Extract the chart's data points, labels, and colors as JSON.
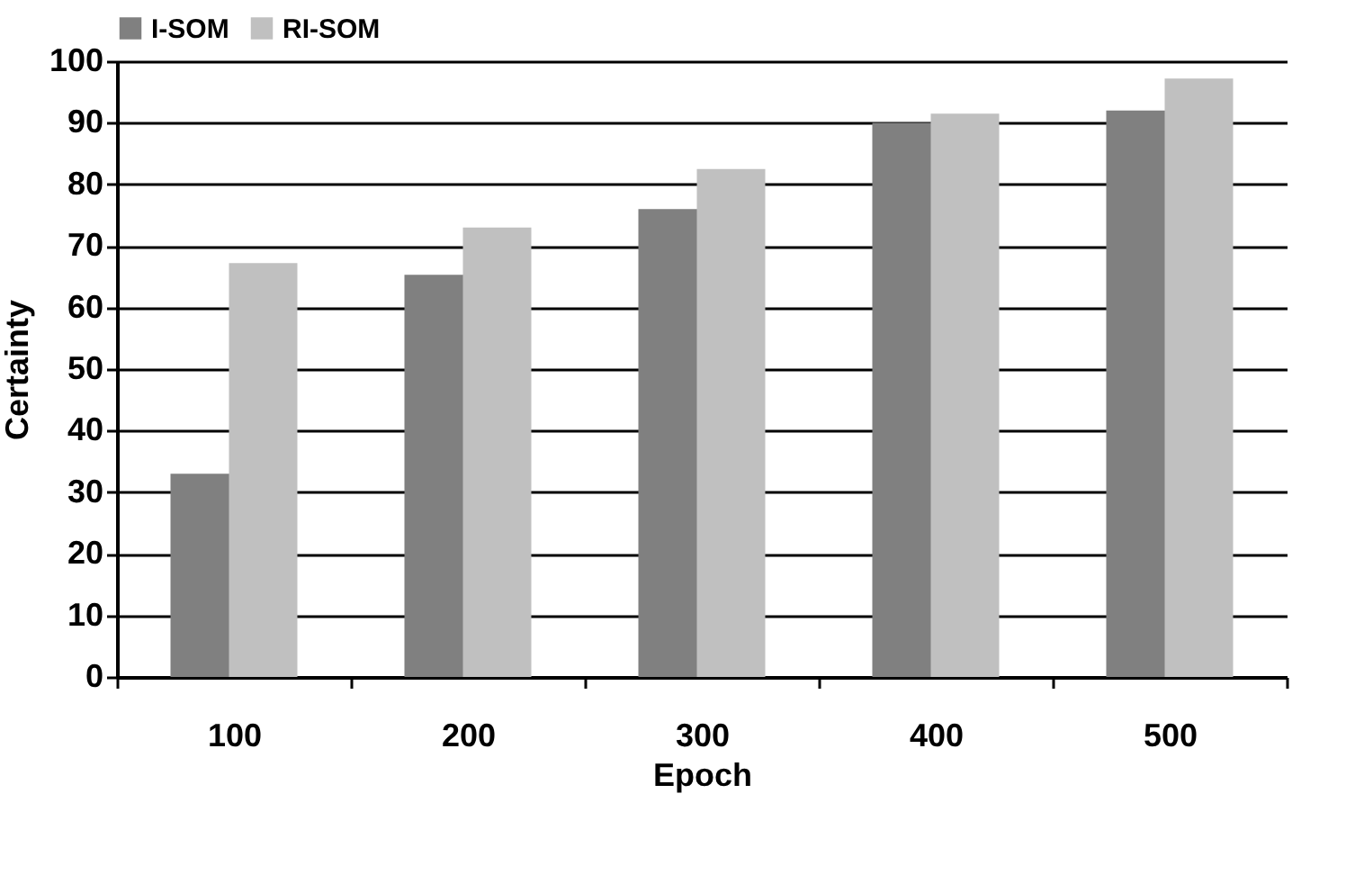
{
  "chart_data": {
    "type": "bar",
    "xlabel": "Epoch",
    "ylabel": "Certainty",
    "categories": [
      "100",
      "200",
      "300",
      "400",
      "500"
    ],
    "series": [
      {
        "name": "I-SOM",
        "color": "#808080",
        "values": [
          33,
          65.3,
          76,
          90,
          92
        ]
      },
      {
        "name": "RI-SOM",
        "color": "#c0c0c0",
        "values": [
          67.2,
          73,
          82.5,
          91.5,
          97.2
        ]
      }
    ],
    "ylim": [
      0,
      100
    ],
    "yticks": [
      0,
      10,
      20,
      30,
      40,
      50,
      60,
      70,
      80,
      90,
      100
    ],
    "grid": "y",
    "legend": "top"
  }
}
